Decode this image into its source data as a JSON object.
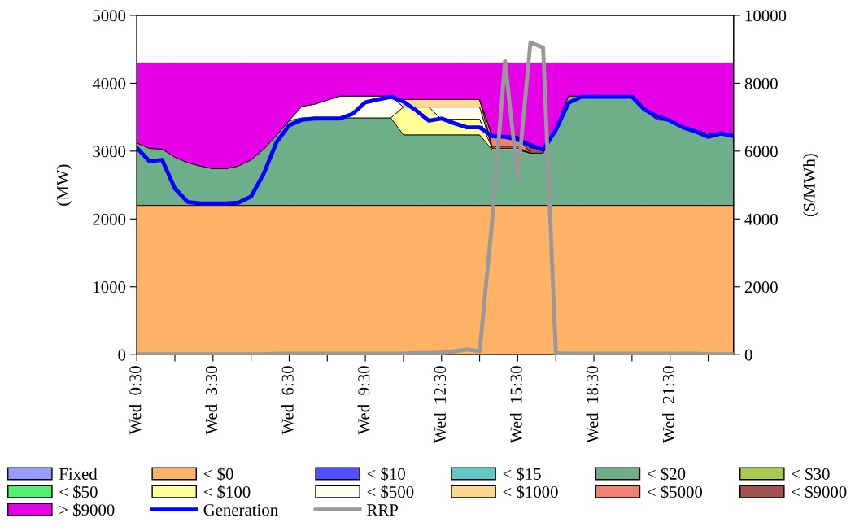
{
  "chart_data": {
    "type": "area",
    "stacked": true,
    "ylabel": "(MW)",
    "y2label": "($/MWh)",
    "categories": [
      "Wed  0:30",
      null,
      null,
      null,
      null,
      null,
      "Wed  3:30",
      null,
      null,
      null,
      null,
      null,
      "Wed  6:30",
      null,
      null,
      null,
      null,
      null,
      "Wed  9:30",
      null,
      null,
      null,
      null,
      null,
      "Wed  12:30",
      null,
      null,
      null,
      null,
      null,
      "Wed  15:30",
      null,
      null,
      null,
      null,
      null,
      "Wed  18:30",
      null,
      null,
      null,
      null,
      null,
      "Wed  21:30",
      null,
      null,
      null,
      null,
      null
    ],
    "ylim": [
      0,
      5000
    ],
    "yticks": [
      0,
      1000,
      2000,
      3000,
      4000,
      5000
    ],
    "y2lim": [
      0,
      10000
    ],
    "y2ticks": [
      0,
      2000,
      4000,
      6000,
      8000,
      10000
    ],
    "grid": false,
    "legend": "bottom",
    "series": [
      {
        "name": "Fixed",
        "color": "#9999ff",
        "values": [
          null,
          null,
          null,
          null,
          null,
          null,
          null,
          null,
          null,
          null,
          null,
          null,
          null,
          null,
          null,
          null,
          null,
          null,
          null,
          null,
          null,
          null,
          null,
          null,
          null,
          null,
          null,
          null,
          null,
          null,
          null,
          null,
          null,
          null,
          null,
          null,
          null,
          null,
          null,
          null,
          null,
          null,
          null,
          null,
          null,
          null,
          null,
          null
        ]
      },
      {
        "name": "< $0",
        "color": "#ffb366",
        "values": [
          2200,
          2200,
          2200,
          2200,
          2200,
          2200,
          2200,
          2200,
          2200,
          2200,
          2200,
          2200,
          2200,
          2200,
          2200,
          2200,
          2200,
          2200,
          2200,
          2200,
          2200,
          2200,
          2200,
          2200,
          2200,
          2200,
          2200,
          2200,
          2200,
          2200,
          2200,
          2200,
          2200,
          2200,
          2200,
          2200,
          2200,
          2200,
          2200,
          2200,
          2200,
          2200,
          2200,
          2200,
          2200,
          2200,
          2200,
          2200
        ]
      },
      {
        "name": "< $10",
        "color": "#5050ff",
        "values": [
          null,
          null,
          null,
          null,
          null,
          null,
          null,
          null,
          null,
          null,
          null,
          null,
          null,
          null,
          null,
          null,
          null,
          null,
          null,
          null,
          null,
          null,
          null,
          null,
          null,
          null,
          null,
          null,
          null,
          null,
          null,
          null,
          null,
          null,
          null,
          null,
          null,
          null,
          null,
          null,
          null,
          null,
          null,
          null,
          null,
          null,
          null,
          null
        ]
      },
      {
        "name": "< $15",
        "color": "#60c8c8",
        "values": [
          null,
          null,
          null,
          null,
          null,
          null,
          null,
          null,
          null,
          null,
          null,
          null,
          null,
          null,
          null,
          null,
          null,
          null,
          null,
          null,
          null,
          null,
          null,
          null,
          null,
          null,
          null,
          null,
          null,
          null,
          null,
          null,
          null,
          null,
          null,
          null,
          null,
          null,
          null,
          null,
          null,
          null,
          null,
          null,
          null,
          null,
          null,
          null
        ]
      },
      {
        "name": "< $20",
        "color": "#6fae8b",
        "values": [
          920,
          840,
          830,
          710,
          630,
          580,
          540,
          540,
          580,
          670,
          830,
          1030,
          1250,
          1290,
          1290,
          1290,
          1290,
          1290,
          1290,
          1290,
          1290,
          1040,
          1040,
          1040,
          1040,
          1040,
          1040,
          1040,
          820,
          820,
          820,
          770,
          770,
          1150,
          1610,
          1610,
          1610,
          1610,
          1610,
          1610,
          1400,
          1260,
          1250,
          1150,
          1110,
          1060,
          1060,
          1040
        ]
      },
      {
        "name": "< $30",
        "color": "#a8c850",
        "values": [
          null,
          null,
          null,
          null,
          null,
          null,
          null,
          null,
          null,
          null,
          null,
          null,
          null,
          null,
          null,
          null,
          null,
          null,
          null,
          null,
          null,
          null,
          null,
          null,
          null,
          null,
          null,
          null,
          null,
          null,
          null,
          null,
          null,
          null,
          null,
          null,
          null,
          null,
          null,
          null,
          null,
          null,
          null,
          null,
          null,
          null,
          null,
          null
        ]
      },
      {
        "name": "< $50",
        "color": "#50f070",
        "values": [
          null,
          null,
          null,
          null,
          null,
          null,
          null,
          null,
          null,
          null,
          null,
          null,
          null,
          null,
          null,
          null,
          null,
          null,
          null,
          null,
          null,
          null,
          null,
          null,
          null,
          null,
          null,
          null,
          null,
          null,
          null,
          null,
          null,
          null,
          null,
          null,
          null,
          null,
          null,
          null,
          null,
          null,
          null,
          null,
          null,
          null,
          null,
          null
        ]
      },
      {
        "name": "< $100",
        "color": "#ffff99",
        "values": [
          null,
          null,
          null,
          null,
          null,
          null,
          null,
          null,
          null,
          null,
          null,
          null,
          null,
          null,
          null,
          null,
          null,
          null,
          null,
          null,
          0,
          410,
          410,
          410,
          230,
          230,
          230,
          230,
          20,
          20,
          20,
          0,
          null,
          null,
          null,
          null,
          null,
          null,
          null,
          null,
          null,
          null,
          null,
          null,
          null,
          null,
          null,
          null
        ]
      },
      {
        "name": "< $500",
        "color": "#fffff0",
        "values": [
          null,
          null,
          null,
          null,
          null,
          null,
          null,
          null,
          null,
          null,
          null,
          null,
          0,
          170,
          200,
          260,
          320,
          320,
          320,
          320,
          320,
          0,
          null,
          0,
          180,
          180,
          180,
          180,
          0,
          null,
          null,
          null,
          null,
          null,
          null,
          null,
          null,
          null,
          null,
          null,
          null,
          null,
          null,
          null,
          null,
          null,
          null,
          null
        ]
      },
      {
        "name": "< $1000",
        "color": "#ffd890",
        "values": [
          null,
          null,
          null,
          null,
          null,
          null,
          null,
          null,
          null,
          null,
          null,
          null,
          null,
          null,
          null,
          null,
          null,
          null,
          null,
          null,
          0,
          110,
          110,
          110,
          110,
          110,
          110,
          110,
          20,
          20,
          20,
          0,
          null,
          null,
          null,
          null,
          null,
          null,
          null,
          null,
          null,
          null,
          null,
          null,
          null,
          null,
          null,
          null
        ]
      },
      {
        "name": "< $5000",
        "color": "#f08070",
        "values": [
          null,
          null,
          null,
          null,
          null,
          null,
          null,
          null,
          null,
          null,
          null,
          null,
          null,
          null,
          null,
          null,
          null,
          null,
          null,
          null,
          null,
          null,
          null,
          null,
          null,
          null,
          null,
          0,
          150,
          150,
          150,
          0,
          null,
          null,
          null,
          null,
          null,
          null,
          null,
          null,
          null,
          null,
          null,
          null,
          null,
          null,
          null,
          null
        ]
      },
      {
        "name": "< $9000",
        "color": "#a05050",
        "values": [
          null,
          null,
          null,
          null,
          null,
          null,
          null,
          null,
          null,
          null,
          null,
          null,
          null,
          null,
          null,
          null,
          null,
          null,
          null,
          null,
          null,
          null,
          null,
          null,
          null,
          null,
          null,
          0,
          20,
          20,
          10,
          80,
          70,
          0,
          null,
          null,
          null,
          null,
          null,
          null,
          null,
          null,
          null,
          null,
          null,
          null,
          null,
          null
        ]
      },
      {
        "name": "> $9000",
        "color": "#e600e6",
        "values": [
          1180,
          1260,
          1270,
          1390,
          1470,
          1520,
          1560,
          1560,
          1520,
          1430,
          1270,
          1070,
          850,
          640,
          610,
          550,
          490,
          490,
          490,
          490,
          490,
          540,
          540,
          540,
          540,
          540,
          540,
          540,
          1070,
          1070,
          1080,
          1250,
          1260,
          950,
          490,
          490,
          490,
          490,
          490,
          490,
          700,
          840,
          850,
          950,
          990,
          1040,
          1040,
          1060
        ]
      },
      {
        "name": "Generation",
        "type": "line",
        "color": "#0000ff",
        "values": [
          3050,
          2850,
          2870,
          2450,
          2250,
          2230,
          2230,
          2230,
          2240,
          2330,
          2670,
          3130,
          3380,
          3460,
          3480,
          3480,
          3480,
          3550,
          3720,
          3760,
          3800,
          3730,
          3600,
          3450,
          3480,
          3410,
          3350,
          3350,
          3220,
          3210,
          3170,
          3090,
          3020,
          3310,
          3710,
          3800,
          3800,
          3800,
          3800,
          3800,
          3610,
          3510,
          3450,
          3350,
          3290,
          3210,
          3260,
          3220
        ]
      },
      {
        "name": "RRP",
        "type": "line",
        "axis": "y2",
        "color": "#999999",
        "values": [
          10,
          10,
          10,
          10,
          10,
          10,
          10,
          10,
          10,
          10,
          10,
          30,
          30,
          30,
          30,
          30,
          30,
          30,
          30,
          30,
          30,
          30,
          50,
          50,
          60,
          100,
          150,
          100,
          4000,
          8650,
          5200,
          9200,
          9050,
          50,
          30,
          30,
          30,
          30,
          30,
          30,
          30,
          30,
          30,
          30,
          30,
          10,
          10,
          10
        ]
      }
    ]
  }
}
